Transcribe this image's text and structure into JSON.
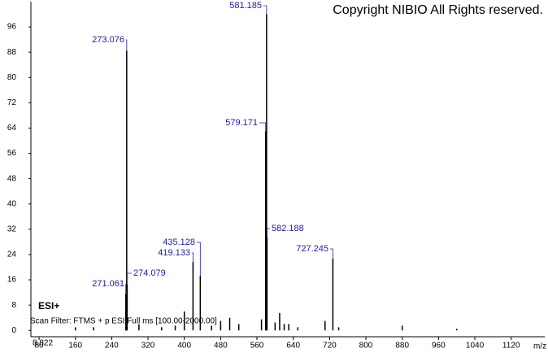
{
  "chart_data": {
    "type": "spectrum",
    "title": "Copyright NIBIO All Rights reserved.",
    "ionization": "ESI+",
    "scan_filter": "Scan Filter: FTMS + p ESI Full ms [100.00-2000.00]",
    "retention_time": "8.822",
    "x_label": "m/z",
    "x": [
      271.061,
      273.076,
      274.079,
      419.133,
      435.128,
      579.171,
      581.185,
      582.188,
      727.245
    ],
    "values": [
      11.5,
      88.5,
      14.5,
      21.7,
      17.3,
      63,
      100,
      29.5,
      22.7
    ],
    "minor_x": [
      160,
      200,
      300,
      350,
      380,
      400,
      460,
      480,
      500,
      520,
      570,
      600,
      610,
      620,
      630,
      650,
      710,
      740,
      880,
      1000
    ],
    "minor_values": [
      1,
      1,
      2,
      1,
      1.5,
      6,
      1.5,
      3,
      4,
      2,
      3.5,
      2.5,
      5.5,
      2,
      2,
      1,
      3,
      1,
      1.5,
      0.5
    ],
    "color": "#000000",
    "label_color": "#1c1c9c",
    "xlim": [
      62,
      1194
    ],
    "ylim": [
      -2,
      104
    ],
    "xticks": [
      80,
      160,
      240,
      320,
      400,
      480,
      560,
      640,
      720,
      800,
      880,
      960,
      1040,
      1120
    ],
    "yticks": [
      0,
      8,
      16,
      24,
      32,
      40,
      48,
      56,
      64,
      72,
      80,
      88,
      96
    ]
  }
}
